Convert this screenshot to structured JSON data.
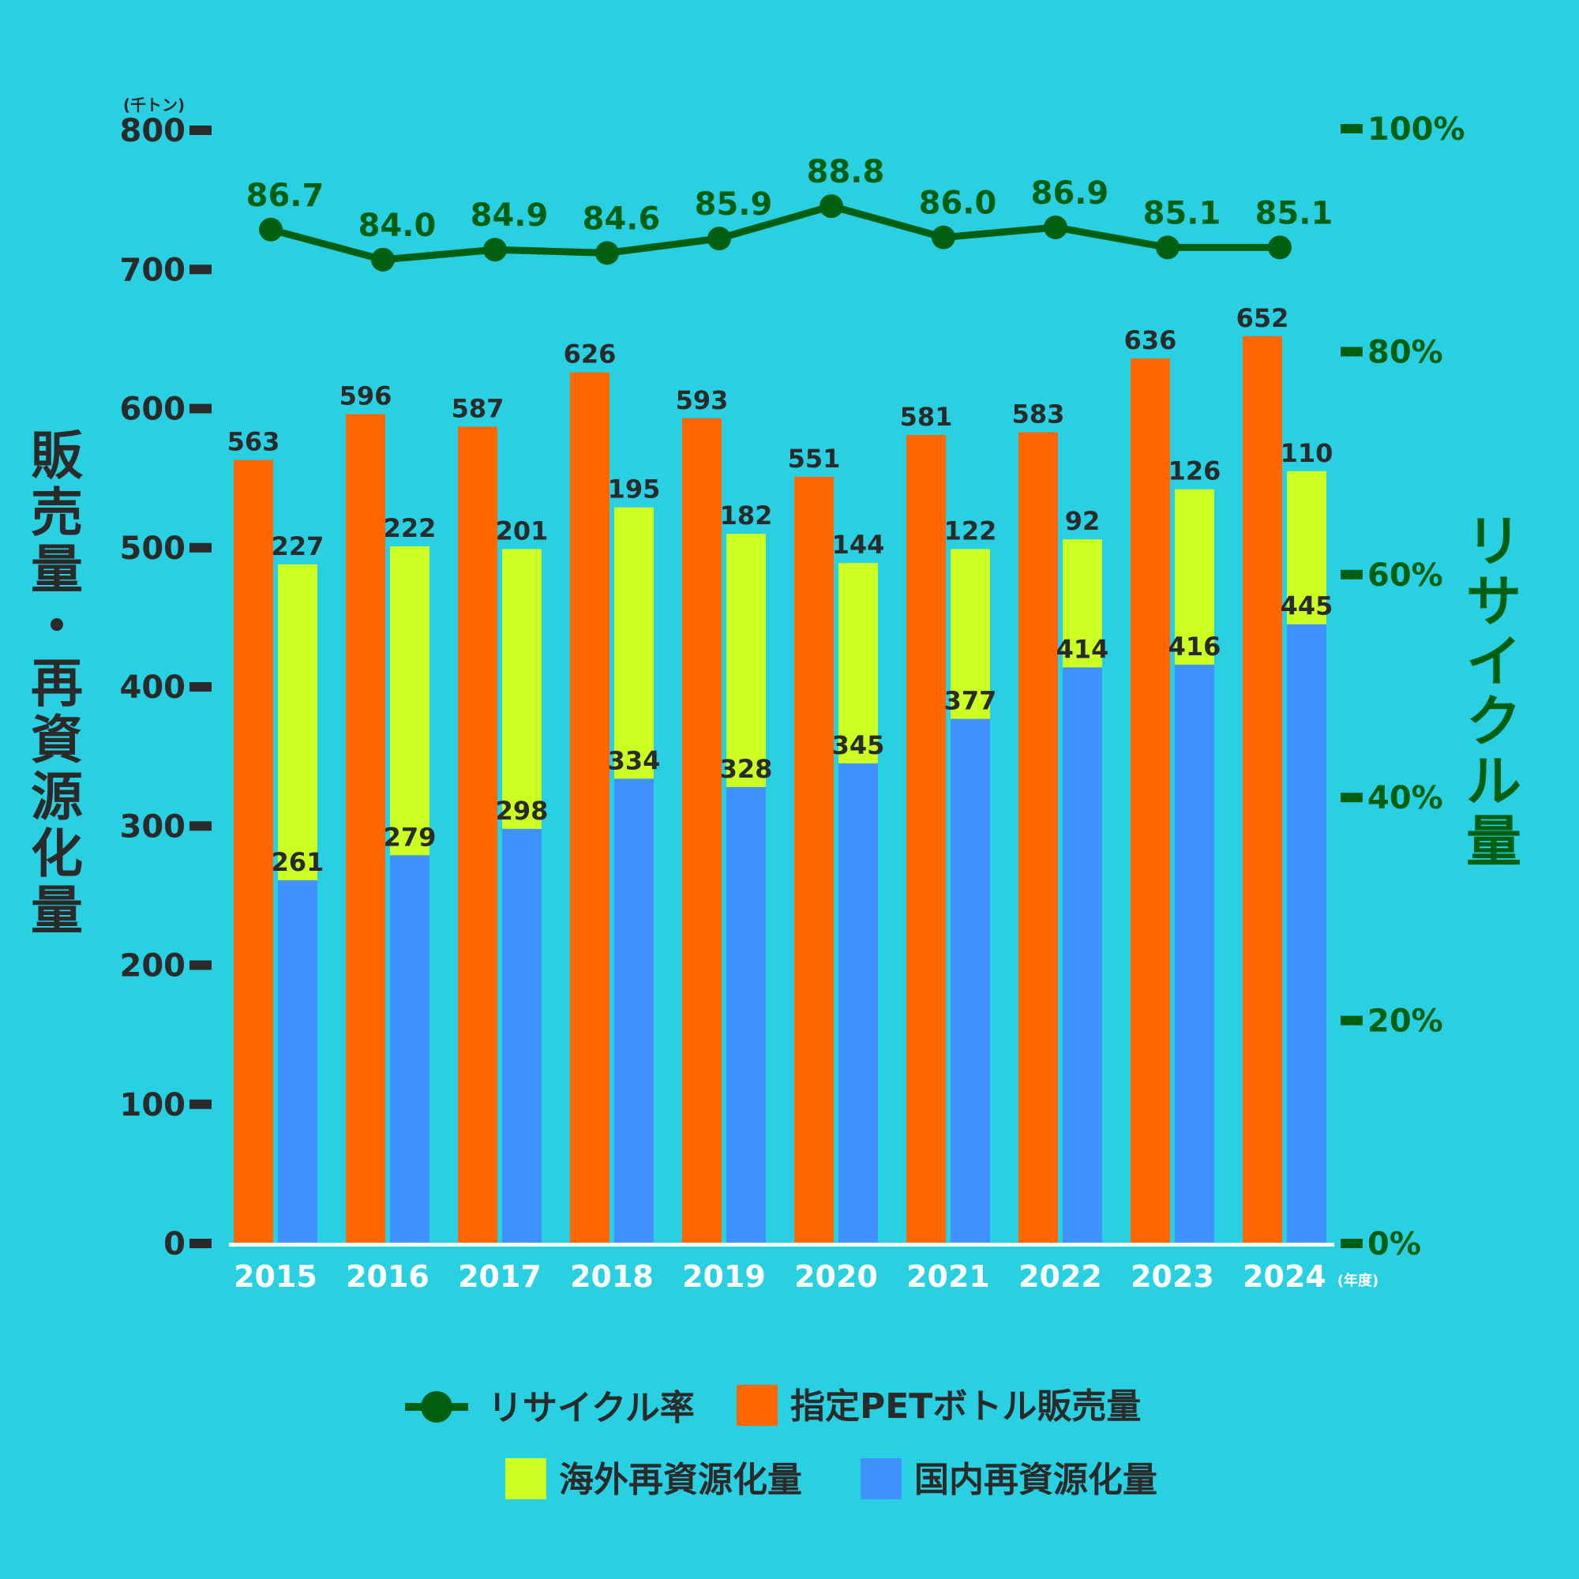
{
  "chart_data": {
    "type": "bar",
    "categories": [
      "2015",
      "2016",
      "2017",
      "2018",
      "2019",
      "2020",
      "2021",
      "2022",
      "2023",
      "2024"
    ],
    "x_unit_label": "(年度)",
    "series": [
      {
        "name": "指定PETボトル販売量",
        "kind": "bar",
        "values": [
          563,
          596,
          587,
          626,
          593,
          551,
          581,
          583,
          636,
          652
        ]
      },
      {
        "name": "国内再資源化量",
        "kind": "stacked-bottom",
        "values": [
          261,
          279,
          298,
          334,
          328,
          345,
          377,
          414,
          416,
          445
        ]
      },
      {
        "name": "海外再資源化量",
        "kind": "stacked-top",
        "values": [
          227,
          222,
          201,
          195,
          182,
          144,
          122,
          92,
          126,
          110
        ]
      },
      {
        "name": "リサイクル率",
        "kind": "line",
        "axis": "right",
        "values": [
          86.7,
          84.0,
          84.9,
          84.6,
          85.9,
          88.8,
          86.0,
          86.9,
          85.1,
          85.1
        ]
      }
    ],
    "ylabel": "販売量・再資源化量",
    "y_unit": "(千トン)",
    "ylim": [
      0,
      800
    ],
    "yticks": [
      "0",
      "100",
      "200",
      "300",
      "400",
      "500",
      "600",
      "700",
      "800"
    ],
    "y2label": "リサイクル量",
    "y2lim": [
      0,
      100
    ],
    "y2ticks": [
      "0%",
      "20%",
      "40%",
      "60%",
      "80%",
      "100%"
    ],
    "legend_position": "bottom",
    "colors": {
      "background": "#29d0e2",
      "sales": "#ff6600",
      "overseas": "#ccff22",
      "domestic": "#4093ff",
      "rate": "#005f10",
      "text": "#2a2a2a"
    }
  }
}
